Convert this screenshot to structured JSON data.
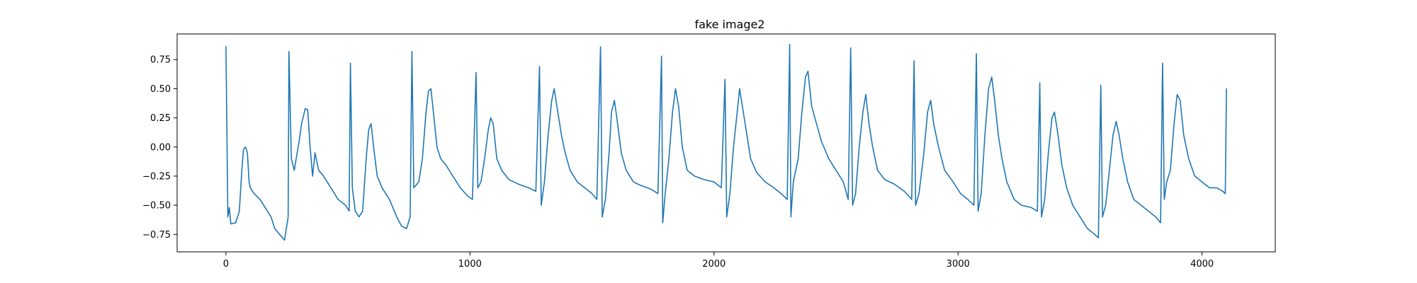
{
  "chart_data": {
    "type": "line",
    "title": "fake image2",
    "xlabel": "",
    "ylabel": "",
    "xlim": [
      -200,
      4300
    ],
    "ylim": [
      -0.9,
      0.97
    ],
    "x_ticks": [
      0,
      1000,
      2000,
      3000,
      4000
    ],
    "x_tick_labels": [
      "0",
      "1000",
      "2000",
      "3000",
      "4000"
    ],
    "y_ticks": [
      -0.75,
      -0.5,
      -0.25,
      0.0,
      0.25,
      0.5,
      0.75
    ],
    "y_tick_labels": [
      "−0.75",
      "−0.50",
      "−0.25",
      "0.00",
      "0.25",
      "0.50",
      "0.75"
    ],
    "grid": false,
    "legend": "none",
    "series": [
      {
        "color": "#1f77b4",
        "points": [
          [
            0,
            0.86
          ],
          [
            8,
            -0.6
          ],
          [
            14,
            -0.52
          ],
          [
            20,
            -0.66
          ],
          [
            40,
            -0.65
          ],
          [
            55,
            -0.55
          ],
          [
            65,
            -0.2
          ],
          [
            72,
            -0.02
          ],
          [
            80,
            0.0
          ],
          [
            88,
            -0.05
          ],
          [
            95,
            -0.3
          ],
          [
            100,
            -0.35
          ],
          [
            115,
            -0.4
          ],
          [
            140,
            -0.45
          ],
          [
            170,
            -0.55
          ],
          [
            185,
            -0.6
          ],
          [
            200,
            -0.7
          ],
          [
            220,
            -0.75
          ],
          [
            240,
            -0.8
          ],
          [
            255,
            -0.6
          ],
          [
            258,
            0.82
          ],
          [
            268,
            -0.1
          ],
          [
            280,
            -0.2
          ],
          [
            300,
            0.05
          ],
          [
            310,
            0.2
          ],
          [
            325,
            0.33
          ],
          [
            335,
            0.32
          ],
          [
            345,
            0.0
          ],
          [
            355,
            -0.25
          ],
          [
            365,
            -0.05
          ],
          [
            380,
            -0.2
          ],
          [
            400,
            -0.25
          ],
          [
            430,
            -0.35
          ],
          [
            460,
            -0.45
          ],
          [
            490,
            -0.5
          ],
          [
            505,
            -0.55
          ],
          [
            510,
            0.72
          ],
          [
            518,
            -0.35
          ],
          [
            530,
            -0.55
          ],
          [
            545,
            -0.6
          ],
          [
            560,
            -0.55
          ],
          [
            575,
            -0.1
          ],
          [
            585,
            0.15
          ],
          [
            595,
            0.2
          ],
          [
            605,
            0.0
          ],
          [
            620,
            -0.25
          ],
          [
            640,
            -0.35
          ],
          [
            670,
            -0.45
          ],
          [
            700,
            -0.6
          ],
          [
            720,
            -0.68
          ],
          [
            740,
            -0.7
          ],
          [
            755,
            -0.6
          ],
          [
            762,
            0.82
          ],
          [
            770,
            -0.35
          ],
          [
            790,
            -0.3
          ],
          [
            805,
            -0.1
          ],
          [
            820,
            0.3
          ],
          [
            830,
            0.48
          ],
          [
            840,
            0.5
          ],
          [
            850,
            0.3
          ],
          [
            865,
            0.0
          ],
          [
            880,
            -0.1
          ],
          [
            900,
            -0.15
          ],
          [
            930,
            -0.25
          ],
          [
            960,
            -0.35
          ],
          [
            990,
            -0.42
          ],
          [
            1010,
            -0.45
          ],
          [
            1025,
            0.64
          ],
          [
            1032,
            -0.35
          ],
          [
            1045,
            -0.3
          ],
          [
            1060,
            -0.1
          ],
          [
            1075,
            0.15
          ],
          [
            1085,
            0.25
          ],
          [
            1095,
            0.2
          ],
          [
            1110,
            -0.1
          ],
          [
            1130,
            -0.2
          ],
          [
            1160,
            -0.28
          ],
          [
            1200,
            -0.32
          ],
          [
            1240,
            -0.35
          ],
          [
            1270,
            -0.38
          ],
          [
            1285,
            0.69
          ],
          [
            1292,
            -0.5
          ],
          [
            1305,
            -0.3
          ],
          [
            1320,
            0.1
          ],
          [
            1335,
            0.4
          ],
          [
            1345,
            0.5
          ],
          [
            1360,
            0.3
          ],
          [
            1375,
            0.1
          ],
          [
            1390,
            -0.05
          ],
          [
            1410,
            -0.2
          ],
          [
            1440,
            -0.3
          ],
          [
            1470,
            -0.35
          ],
          [
            1500,
            -0.4
          ],
          [
            1520,
            -0.45
          ],
          [
            1535,
            0.86
          ],
          [
            1542,
            -0.6
          ],
          [
            1555,
            -0.45
          ],
          [
            1570,
            -0.05
          ],
          [
            1580,
            0.3
          ],
          [
            1592,
            0.4
          ],
          [
            1605,
            0.2
          ],
          [
            1620,
            -0.05
          ],
          [
            1640,
            -0.2
          ],
          [
            1670,
            -0.3
          ],
          [
            1700,
            -0.33
          ],
          [
            1740,
            -0.36
          ],
          [
            1770,
            -0.4
          ],
          [
            1785,
            0.78
          ],
          [
            1790,
            -0.65
          ],
          [
            1800,
            -0.4
          ],
          [
            1815,
            -0.1
          ],
          [
            1830,
            0.3
          ],
          [
            1842,
            0.5
          ],
          [
            1855,
            0.35
          ],
          [
            1870,
            0.0
          ],
          [
            1890,
            -0.2
          ],
          [
            1920,
            -0.25
          ],
          [
            1960,
            -0.28
          ],
          [
            2000,
            -0.3
          ],
          [
            2030,
            -0.35
          ],
          [
            2045,
            0.58
          ],
          [
            2052,
            -0.6
          ],
          [
            2065,
            -0.4
          ],
          [
            2080,
            0.0
          ],
          [
            2095,
            0.3
          ],
          [
            2105,
            0.5
          ],
          [
            2120,
            0.3
          ],
          [
            2135,
            0.1
          ],
          [
            2150,
            -0.1
          ],
          [
            2175,
            -0.22
          ],
          [
            2210,
            -0.3
          ],
          [
            2245,
            -0.35
          ],
          [
            2275,
            -0.4
          ],
          [
            2300,
            -0.45
          ],
          [
            2310,
            0.88
          ],
          [
            2315,
            -0.6
          ],
          [
            2325,
            -0.3
          ],
          [
            2345,
            -0.1
          ],
          [
            2360,
            0.3
          ],
          [
            2375,
            0.6
          ],
          [
            2385,
            0.65
          ],
          [
            2400,
            0.35
          ],
          [
            2420,
            0.2
          ],
          [
            2440,
            0.05
          ],
          [
            2470,
            -0.1
          ],
          [
            2500,
            -0.2
          ],
          [
            2530,
            -0.3
          ],
          [
            2550,
            -0.45
          ],
          [
            2560,
            0.85
          ],
          [
            2568,
            -0.5
          ],
          [
            2580,
            -0.4
          ],
          [
            2595,
            0.0
          ],
          [
            2610,
            0.3
          ],
          [
            2622,
            0.45
          ],
          [
            2635,
            0.2
          ],
          [
            2650,
            0.0
          ],
          [
            2670,
            -0.2
          ],
          [
            2700,
            -0.28
          ],
          [
            2740,
            -0.32
          ],
          [
            2780,
            -0.38
          ],
          [
            2810,
            -0.45
          ],
          [
            2820,
            0.74
          ],
          [
            2826,
            -0.5
          ],
          [
            2840,
            -0.4
          ],
          [
            2860,
            -0.05
          ],
          [
            2875,
            0.3
          ],
          [
            2888,
            0.4
          ],
          [
            2900,
            0.2
          ],
          [
            2920,
            0.0
          ],
          [
            2945,
            -0.2
          ],
          [
            2980,
            -0.3
          ],
          [
            3010,
            -0.4
          ],
          [
            3040,
            -0.45
          ],
          [
            3065,
            -0.5
          ],
          [
            3075,
            0.8
          ],
          [
            3082,
            -0.55
          ],
          [
            3095,
            -0.4
          ],
          [
            3110,
            0.1
          ],
          [
            3125,
            0.5
          ],
          [
            3138,
            0.6
          ],
          [
            3150,
            0.4
          ],
          [
            3165,
            0.1
          ],
          [
            3180,
            -0.1
          ],
          [
            3200,
            -0.3
          ],
          [
            3230,
            -0.45
          ],
          [
            3260,
            -0.5
          ],
          [
            3300,
            -0.52
          ],
          [
            3325,
            -0.55
          ],
          [
            3335,
            0.55
          ],
          [
            3342,
            -0.6
          ],
          [
            3355,
            -0.45
          ],
          [
            3370,
            -0.05
          ],
          [
            3385,
            0.25
          ],
          [
            3395,
            0.3
          ],
          [
            3410,
            0.1
          ],
          [
            3425,
            -0.15
          ],
          [
            3445,
            -0.35
          ],
          [
            3470,
            -0.5
          ],
          [
            3500,
            -0.6
          ],
          [
            3530,
            -0.7
          ],
          [
            3560,
            -0.75
          ],
          [
            3575,
            -0.78
          ],
          [
            3585,
            0.53
          ],
          [
            3592,
            -0.6
          ],
          [
            3605,
            -0.5
          ],
          [
            3620,
            -0.2
          ],
          [
            3635,
            0.1
          ],
          [
            3648,
            0.22
          ],
          [
            3660,
            0.1
          ],
          [
            3675,
            -0.1
          ],
          [
            3695,
            -0.3
          ],
          [
            3720,
            -0.45
          ],
          [
            3750,
            -0.5
          ],
          [
            3780,
            -0.55
          ],
          [
            3810,
            -0.6
          ],
          [
            3830,
            -0.65
          ],
          [
            3838,
            0.72
          ],
          [
            3845,
            -0.45
          ],
          [
            3855,
            -0.3
          ],
          [
            3870,
            -0.2
          ],
          [
            3885,
            0.2
          ],
          [
            3898,
            0.45
          ],
          [
            3910,
            0.4
          ],
          [
            3925,
            0.1
          ],
          [
            3945,
            -0.1
          ],
          [
            3970,
            -0.25
          ],
          [
            4000,
            -0.3
          ],
          [
            4030,
            -0.35
          ],
          [
            4060,
            -0.35
          ],
          [
            4085,
            -0.38
          ],
          [
            4095,
            -0.4
          ],
          [
            4100,
            0.5
          ]
        ]
      }
    ]
  }
}
